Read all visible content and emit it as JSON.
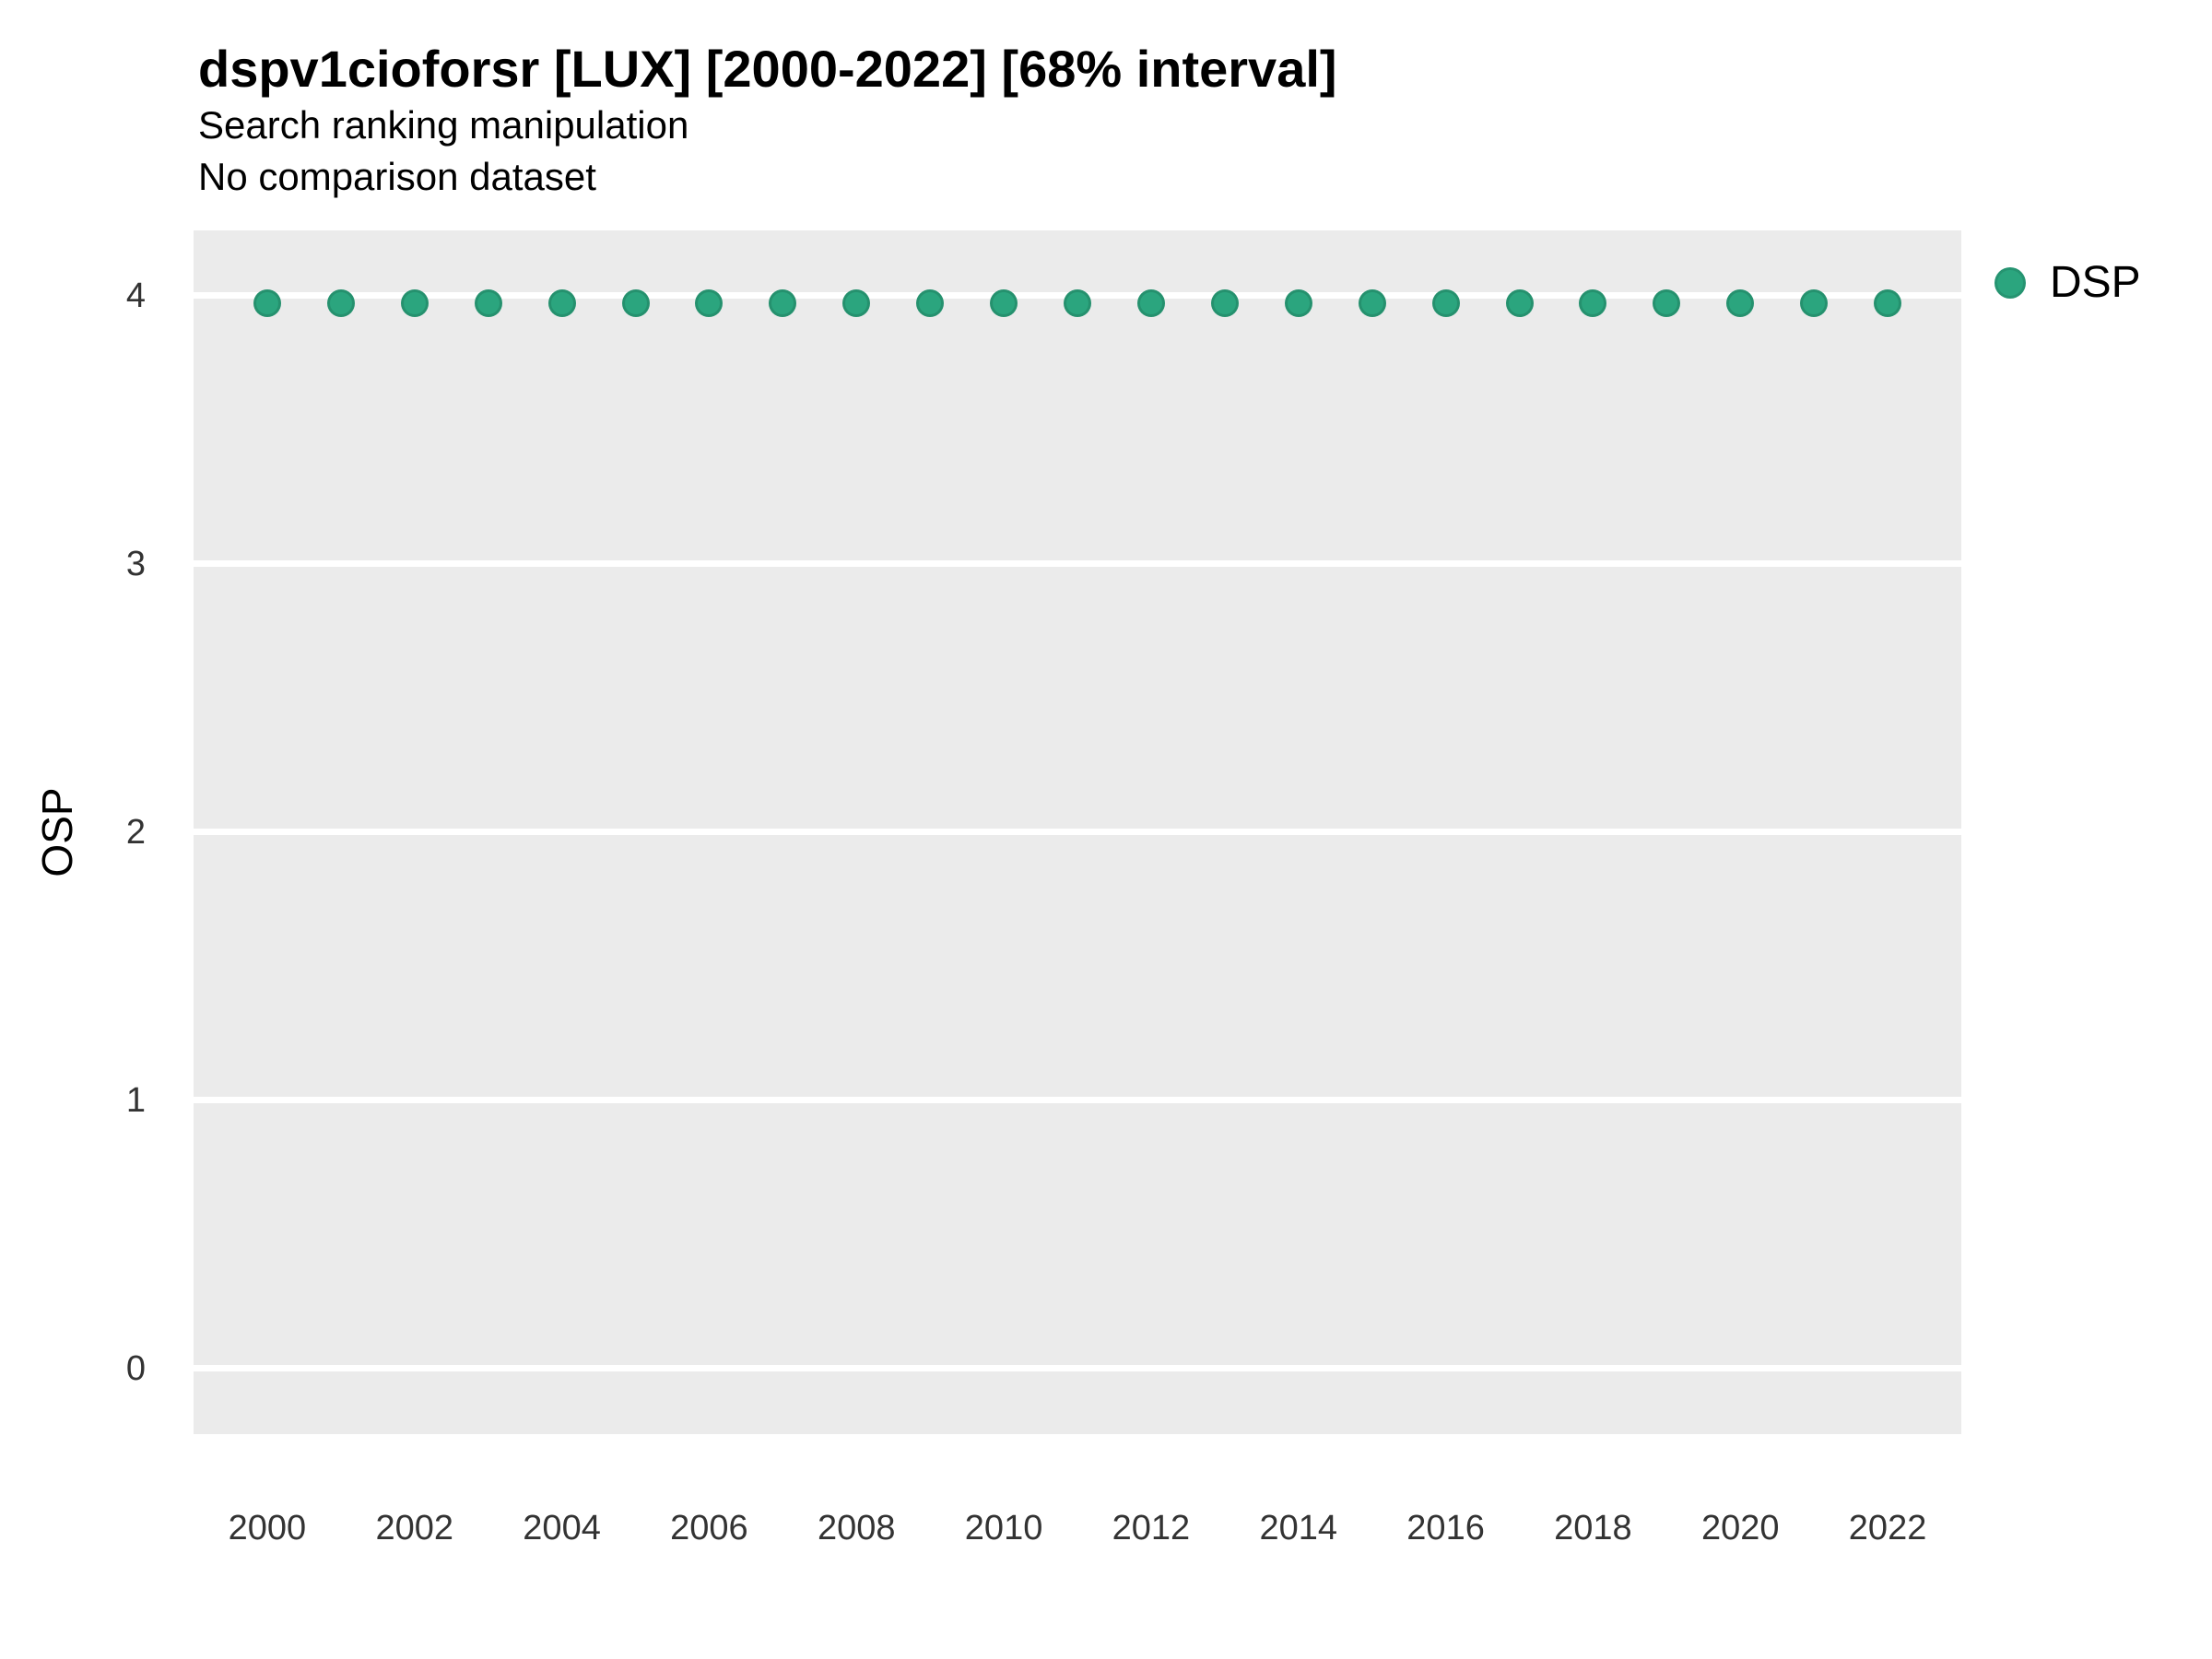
{
  "chart_data": {
    "type": "scatter",
    "title": "dspv1cioforsr [LUX] [2000-2022] [68% interval]",
    "subtitle_lines": [
      "Search ranking manipulation",
      "No comparison dataset"
    ],
    "xlabel": "",
    "ylabel": "OSP",
    "x": [
      2000,
      2001,
      2002,
      2003,
      2004,
      2005,
      2006,
      2007,
      2008,
      2009,
      2010,
      2011,
      2012,
      2013,
      2014,
      2015,
      2016,
      2017,
      2018,
      2019,
      2020,
      2021,
      2022
    ],
    "series": [
      {
        "name": "DSP",
        "values": [
          3.97,
          3.97,
          3.97,
          3.97,
          3.97,
          3.97,
          3.97,
          3.97,
          3.97,
          3.97,
          3.97,
          3.97,
          3.97,
          3.97,
          3.97,
          3.97,
          3.97,
          3.97,
          3.97,
          3.97,
          3.97,
          3.97,
          3.97
        ]
      }
    ],
    "x_ticks": [
      2000,
      2002,
      2004,
      2006,
      2008,
      2010,
      2012,
      2014,
      2016,
      2018,
      2020,
      2022
    ],
    "y_ticks": [
      0,
      1,
      2,
      3,
      4
    ],
    "xlim": [
      1999,
      2023
    ],
    "ylim": [
      -0.244,
      4.243
    ],
    "grid": "horizontal-major-only",
    "legend_position": "right-top",
    "panel_background": "#EBEBEB",
    "gridline_color": "#FFFFFF",
    "point_color": "#2BA57E"
  }
}
